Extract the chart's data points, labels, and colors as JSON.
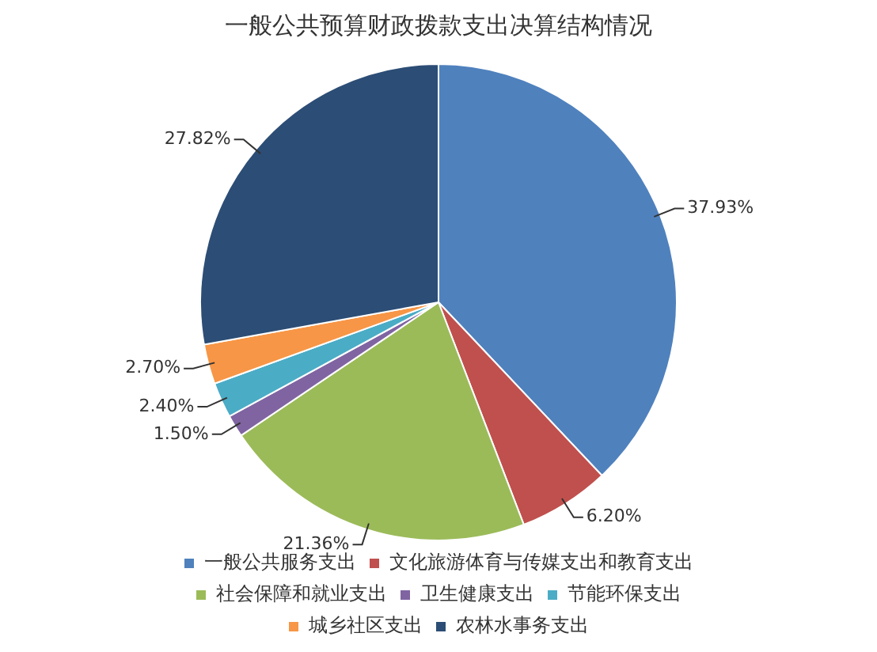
{
  "chart_data": {
    "type": "pie",
    "title": "一般公共预算财政拨款支出决算结构情况",
    "categories": [
      "一般公共服务支出",
      "文化旅游体育与传媒支出和教育支出",
      "社会保障和就业支出",
      "卫生健康支出",
      "节能环保支出",
      "城乡社区支出",
      "农林水事务支出"
    ],
    "values": [
      37.93,
      6.2,
      21.36,
      1.5,
      2.4,
      2.7,
      27.82
    ],
    "value_labels": [
      "37.93%",
      "6.20%",
      "21.36%",
      "1.50%",
      "2.40%",
      "2.70%",
      "27.82%"
    ],
    "colors": [
      "#4f81bd",
      "#c0504d",
      "#9bbb59",
      "#8064a2",
      "#4bacc6",
      "#f79646",
      "#2c4d75"
    ],
    "legend": "bottom"
  }
}
